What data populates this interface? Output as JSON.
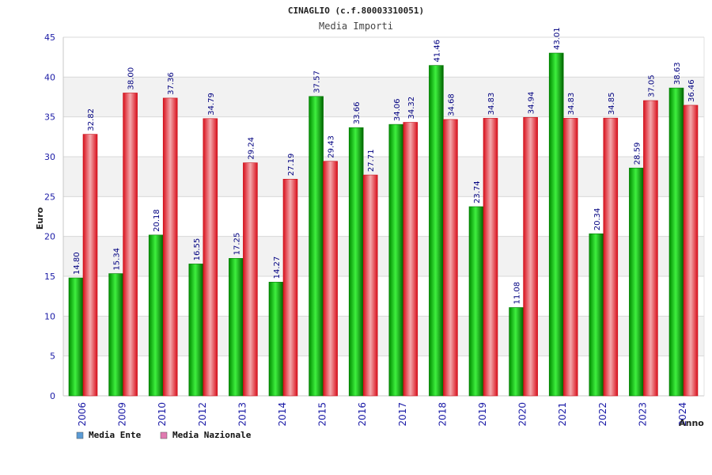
{
  "chart_data": {
    "type": "bar",
    "title": "CINAGLIO (c.f.80003310051)",
    "subtitle": "Media Importi",
    "xlabel": "Anno",
    "ylabel": "Euro",
    "ylim": [
      0,
      45
    ],
    "yticks": [
      "0",
      "5",
      "10",
      "15",
      "20",
      "25",
      "30",
      "35",
      "40",
      "45"
    ],
    "grid": true,
    "categories": [
      "2006",
      "2009",
      "2010",
      "2012",
      "2013",
      "2014",
      "2015",
      "2016",
      "2017",
      "2018",
      "2019",
      "2020",
      "2021",
      "2022",
      "2023",
      "2024"
    ],
    "series": [
      {
        "name": "Media Ente",
        "color": "#00c000",
        "legend_color": "#5b9bd5",
        "values": [
          14.8,
          15.34,
          20.18,
          16.55,
          17.25,
          14.27,
          37.57,
          33.66,
          34.06,
          41.46,
          23.74,
          11.08,
          43.01,
          20.34,
          28.59,
          38.63
        ],
        "labels": [
          "14.80",
          "15.34",
          "20.18",
          "16.55",
          "17.25",
          "14.27",
          "37.57",
          "33.66",
          "34.06",
          "41.46",
          "23.74",
          "11.08",
          "43.01",
          "20.34",
          "28.59",
          "38.63"
        ]
      },
      {
        "name": "Media Nazionale",
        "color": "#e8202a",
        "legend_color": "#e07ab0",
        "values": [
          32.82,
          38.0,
          37.36,
          34.79,
          29.24,
          27.19,
          29.43,
          27.71,
          34.32,
          34.68,
          34.83,
          34.94,
          34.83,
          34.85,
          37.05,
          36.46
        ],
        "labels": [
          "32.82",
          "38.00",
          "37.36",
          "34.79",
          "29.24",
          "27.19",
          "29.43",
          "27.71",
          "34.32",
          "34.68",
          "34.83",
          "34.94",
          "34.83",
          "34.85",
          "37.05",
          "36.46"
        ]
      }
    ],
    "legend_position": "bottom-left"
  }
}
